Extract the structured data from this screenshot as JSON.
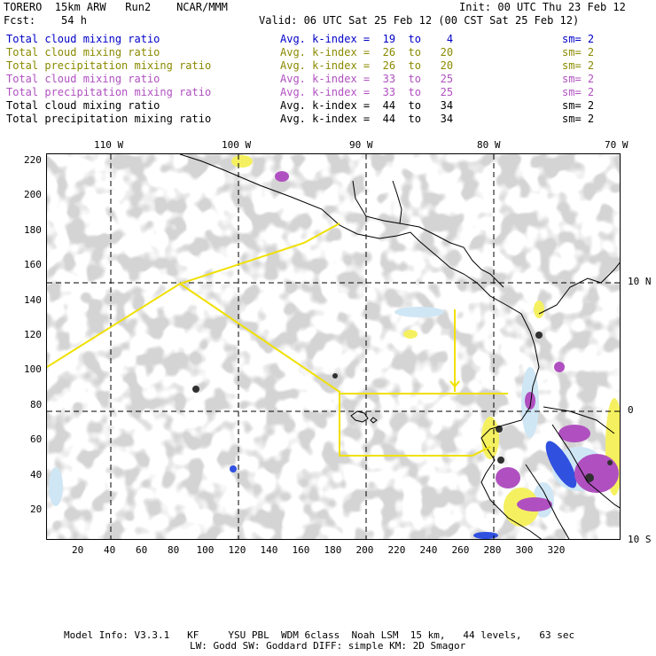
{
  "header": {
    "title": "TORERO  15km ARW   Run2    NCAR/MMM",
    "init": "Init: 00 UTC Thu 23 Feb 12",
    "fcst": "Fcst:    54 h",
    "valid": "Valid: 06 UTC Sat 25 Feb 12 (00 CST Sat 25 Feb 12)"
  },
  "legend": [
    {
      "name": "Total cloud mixing ratio",
      "kidx": "Avg. k-index =  19  to    4",
      "sm": "sm= 2",
      "color": "#0000c8"
    },
    {
      "name": "Total cloud mixing ratio",
      "kidx": "Avg. k-index =  26  to   20",
      "sm": "sm= 2",
      "color": "#8a8a00"
    },
    {
      "name": "Total precipitation mixing ratio",
      "kidx": "Avg. k-index =  26  to   20",
      "sm": "sm= 2",
      "color": "#8a8a00"
    },
    {
      "name": "Total cloud mixing ratio",
      "kidx": "Avg. k-index =  33  to   25",
      "sm": "sm= 2",
      "color": "#b050c0"
    },
    {
      "name": "Total precipitation mixing ratio",
      "kidx": "Avg. k-index =  33  to   25",
      "sm": "sm= 2",
      "color": "#b050c0"
    },
    {
      "name": "Total cloud mixing ratio",
      "kidx": "Avg. k-index =  44  to   34",
      "sm": "sm= 2",
      "color": "#000000"
    },
    {
      "name": "Total precipitation mixing ratio",
      "kidx": "Avg. k-index =  44  to   34",
      "sm": "sm= 2",
      "color": "#000000"
    }
  ],
  "axes": {
    "lon_labels": [
      "110 W",
      "100 W",
      "90 W",
      "80 W",
      "70 W"
    ],
    "lat_labels": [
      "10 N",
      "0",
      "10 S"
    ],
    "x_ticks": [
      "20",
      "40",
      "60",
      "80",
      "100",
      "120",
      "140",
      "160",
      "180",
      "200",
      "220",
      "240",
      "260",
      "280",
      "300",
      "320"
    ],
    "y_ticks": [
      "220",
      "200",
      "180",
      "160",
      "140",
      "120",
      "100",
      "80",
      "60",
      "40",
      "20"
    ]
  },
  "footer": {
    "line1": "Model Info: V3.3.1   KF     YSU PBL  WDM 6class  Noah LSM  15 km,   44 levels,   63 sec",
    "line2": "LW: Godd SW: Goddard DIFF: simple KM: 2D Smagor"
  },
  "colors": {
    "cloud_gray": "#a8a8a8",
    "light_blue": "#cfe6f5",
    "blue": "#3050e0",
    "yellow": "#f5f060",
    "purple": "#b050c0",
    "black_core": "#202020",
    "track_yellow": "#f0e000"
  }
}
